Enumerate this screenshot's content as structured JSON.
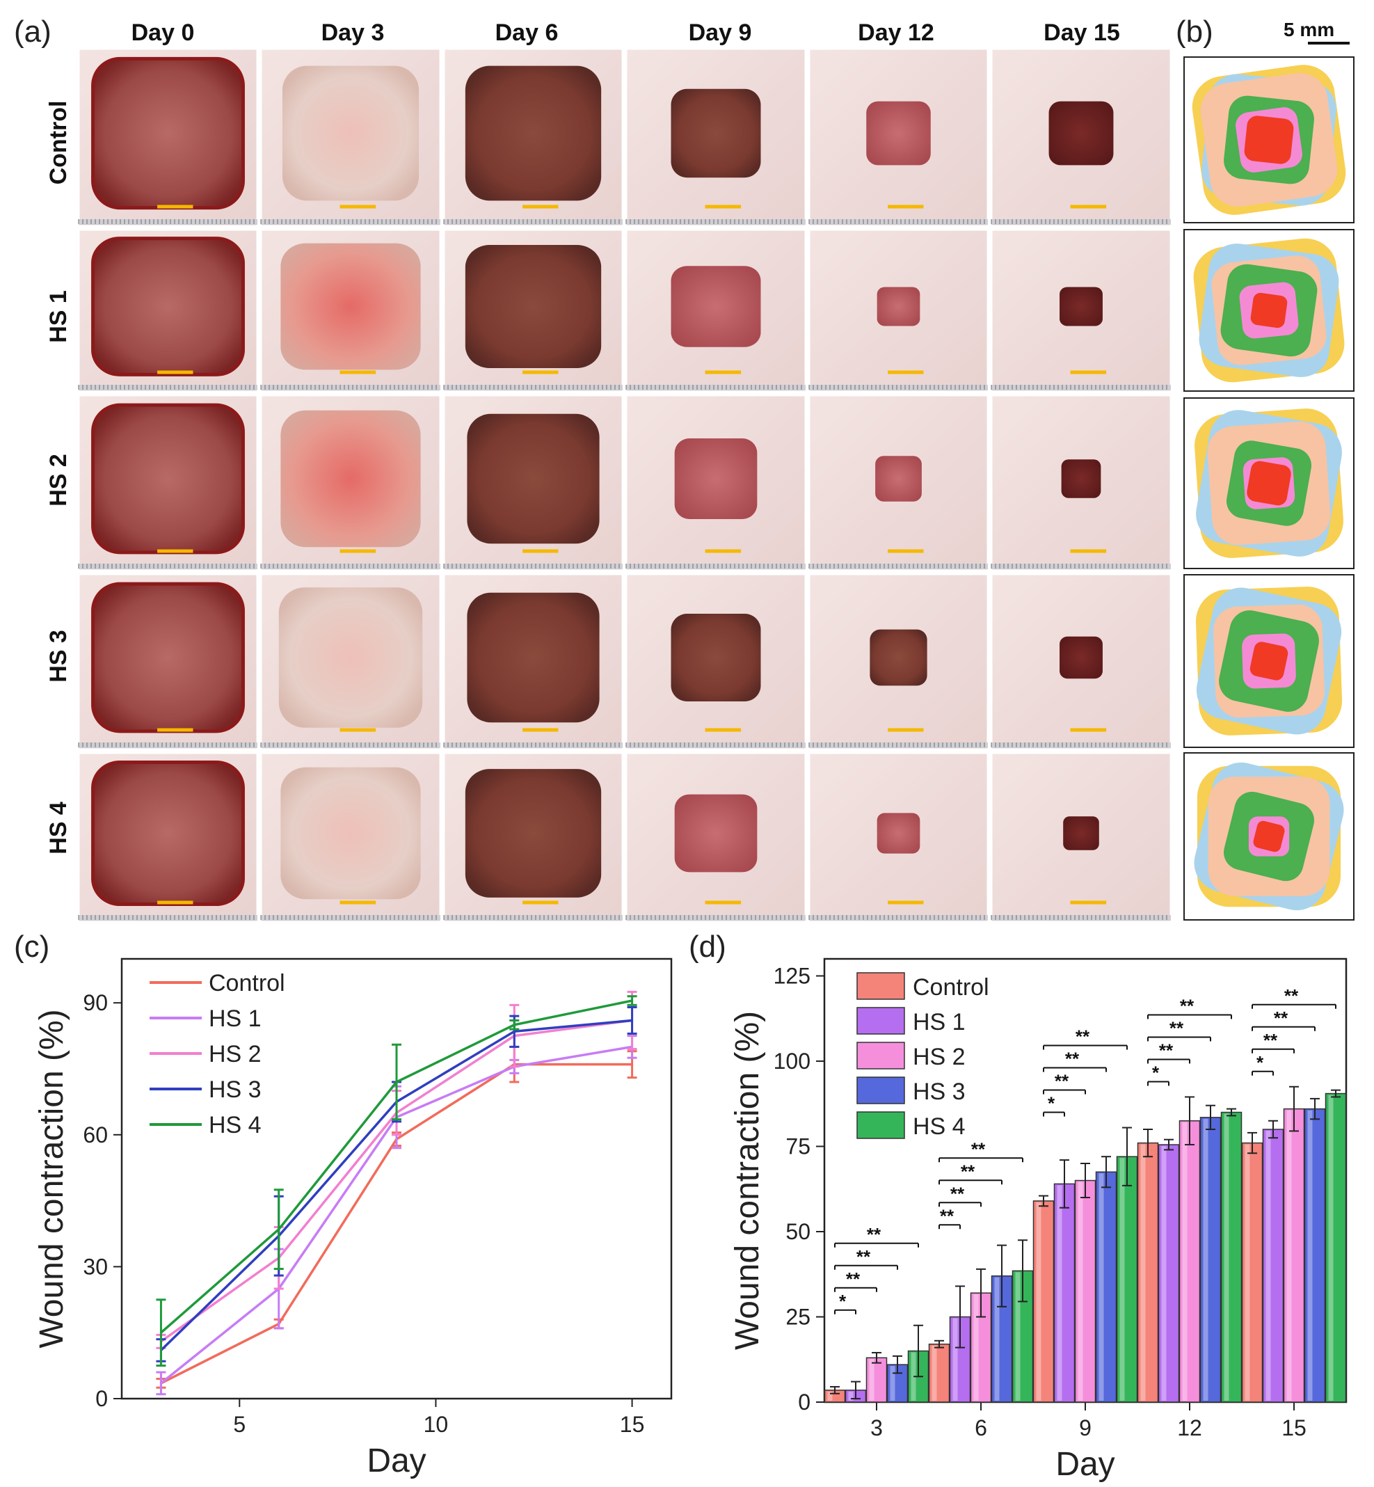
{
  "panel_labels": {
    "a": "(a)",
    "b": "(b)",
    "c": "(c)",
    "d": "(d)"
  },
  "photo_grid": {
    "columns": [
      "Day 0",
      "Day 3",
      "Day 6",
      "Day 9",
      "Day 12",
      "Day 15"
    ],
    "rows": [
      "Control",
      "HS 1",
      "HS 2",
      "HS 3",
      "HS 4"
    ]
  },
  "trace_scale_label": "5 mm",
  "trace_colors": {
    "day0": "#f7cf52",
    "day3": "#a9d3ec",
    "day6": "#f7c3a3",
    "day9": "#4caf50",
    "day12": "#f58ad4",
    "day15": "#f03a24"
  },
  "colors": {
    "Control": "#f26b5b",
    "HS 1": "#c77cf5",
    "HS 2": "#f27fd0",
    "HS 3": "#2f3fbf",
    "HS 4": "#1f9a3a",
    "bar_Control": "#f4837a",
    "bar_HS 1": "#b56ef0",
    "bar_HS 2": "#f58fdc",
    "bar_HS 3": "#5568dc",
    "bar_HS 4": "#35b55a"
  },
  "chart_data": [
    {
      "id": "c",
      "type": "line",
      "xlabel": "Day",
      "ylabel": "Wound contraction (%)",
      "xlim": [
        2,
        16
      ],
      "ylim": [
        0,
        100
      ],
      "xticks": [
        5,
        10,
        15
      ],
      "yticks": [
        0,
        30,
        60,
        90
      ],
      "legend": [
        "Control",
        "HS 1",
        "HS 2",
        "HS 3",
        "HS 4"
      ],
      "legend_position": "top-left",
      "x": [
        3,
        6,
        9,
        12,
        15
      ],
      "series": [
        {
          "name": "Control",
          "values": [
            3.5,
            17,
            59,
            76,
            76
          ],
          "errors": [
            1,
            1,
            1.5,
            4,
            3
          ]
        },
        {
          "name": "HS 1",
          "values": [
            3.5,
            25,
            64,
            75.5,
            80
          ],
          "errors": [
            2.5,
            9,
            7,
            1.5,
            2.5
          ]
        },
        {
          "name": "HS 2",
          "values": [
            13,
            32,
            65,
            82.5,
            86
          ],
          "errors": [
            1.5,
            7,
            5,
            7,
            6.5
          ]
        },
        {
          "name": "HS 3",
          "values": [
            11,
            37,
            67.5,
            83.5,
            86
          ],
          "errors": [
            2.5,
            9,
            4.5,
            3.5,
            3
          ]
        },
        {
          "name": "HS 4",
          "values": [
            15,
            38.5,
            72,
            85,
            90.5
          ],
          "errors": [
            7.5,
            9,
            8.5,
            1,
            1
          ]
        }
      ]
    },
    {
      "id": "d",
      "type": "bar",
      "xlabel": "Day",
      "ylabel": "Wound contraction (%)",
      "ylim": [
        0,
        130
      ],
      "yticks": [
        0,
        25,
        50,
        75,
        100,
        125
      ],
      "categories": [
        "3",
        "6",
        "9",
        "12",
        "15"
      ],
      "legend": [
        "Control",
        "HS 1",
        "HS 2",
        "HS 3",
        "HS 4"
      ],
      "legend_position": "top-left",
      "series": [
        {
          "name": "Control",
          "values": [
            3.5,
            17,
            59,
            76,
            76
          ],
          "errors": [
            1,
            1,
            1.5,
            4,
            3
          ]
        },
        {
          "name": "HS 1",
          "values": [
            3.5,
            25,
            64,
            75.5,
            80
          ],
          "errors": [
            2.5,
            9,
            7,
            1.5,
            2.5
          ]
        },
        {
          "name": "HS 2",
          "values": [
            13,
            32,
            65,
            82.5,
            86
          ],
          "errors": [
            1.5,
            7,
            5,
            7,
            6.5
          ]
        },
        {
          "name": "HS 3",
          "values": [
            11,
            37,
            67.5,
            83.5,
            86
          ],
          "errors": [
            2.5,
            9,
            4.5,
            3.5,
            3
          ]
        },
        {
          "name": "HS 4",
          "values": [
            15,
            38.5,
            72,
            85,
            90.5
          ],
          "errors": [
            7.5,
            9,
            8.5,
            1,
            1
          ]
        }
      ],
      "significance": [
        {
          "group": 0,
          "brackets": [
            {
              "to": 1,
              "label": "*"
            },
            {
              "to": 2,
              "label": "**"
            },
            {
              "to": 3,
              "label": "**"
            },
            {
              "to": 4,
              "label": "**"
            }
          ]
        },
        {
          "group": 1,
          "brackets": [
            {
              "to": 1,
              "label": "**"
            },
            {
              "to": 2,
              "label": "**"
            },
            {
              "to": 3,
              "label": "**"
            },
            {
              "to": 4,
              "label": "**"
            }
          ]
        },
        {
          "group": 2,
          "brackets": [
            {
              "to": 1,
              "label": "*"
            },
            {
              "to": 2,
              "label": "**"
            },
            {
              "to": 3,
              "label": "**"
            },
            {
              "to": 4,
              "label": "**"
            }
          ]
        },
        {
          "group": 3,
          "brackets": [
            {
              "to": 1,
              "label": "*"
            },
            {
              "to": 2,
              "label": "**"
            },
            {
              "to": 3,
              "label": "**"
            },
            {
              "to": 4,
              "label": "**"
            }
          ]
        },
        {
          "group": 4,
          "brackets": [
            {
              "to": 1,
              "label": "*"
            },
            {
              "to": 2,
              "label": "**"
            },
            {
              "to": 3,
              "label": "**"
            },
            {
              "to": 4,
              "label": "**"
            }
          ]
        }
      ]
    }
  ]
}
